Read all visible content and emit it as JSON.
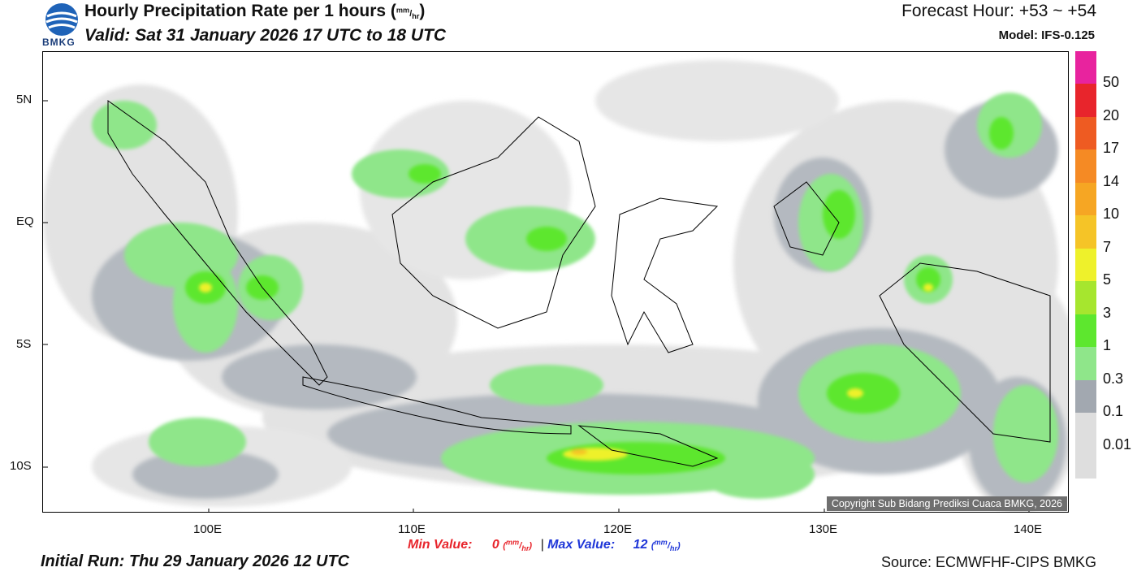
{
  "header": {
    "title_text": "Hourly Precipitation Rate per 1 hours (",
    "title_unit_top": "mm",
    "title_unit_sep": "/",
    "title_unit_bottom": "hr",
    "title_close": ")",
    "valid": "Valid: Sat 31 January 2026 17 UTC to 18 UTC",
    "forecast_hour": "Forecast Hour: +53 ~ +54",
    "model": "Model: IFS-0.125"
  },
  "logo": {
    "text": "BMKG",
    "icon": "bmkg-logo"
  },
  "map": {
    "y_labels": [
      "5N",
      "EQ",
      "5S",
      "10S"
    ],
    "x_labels": [
      "100E",
      "110E",
      "120E",
      "130E",
      "140E"
    ],
    "copyright": "Copyright Sub Bidang Prediksi Cuaca BMKG, 2026"
  },
  "colorbar": {
    "labels": [
      "50",
      "20",
      "17",
      "14",
      "10",
      "7",
      "5",
      "3",
      "1",
      "0.3",
      "0.1",
      "0.01"
    ],
    "colors": [
      "#e8239e",
      "#e8252c",
      "#ee5b22",
      "#f58a24",
      "#f6a623",
      "#f5c427",
      "#eef12b",
      "#a6e62e",
      "#5de72e",
      "#8fe68a",
      "#a2a8b0",
      "#dedede"
    ]
  },
  "stats": {
    "min_label": "Min Value:",
    "min_value": "0",
    "max_label": "Max Value:",
    "max_value": "12",
    "unit_top": "mm",
    "unit_bottom": "hr",
    "separator": "|"
  },
  "footer": {
    "initial_run": "Initial Run: Thu 29 January 2026 12 UTC",
    "source": "Source: ECMWFHF-CIPS BMKG"
  }
}
